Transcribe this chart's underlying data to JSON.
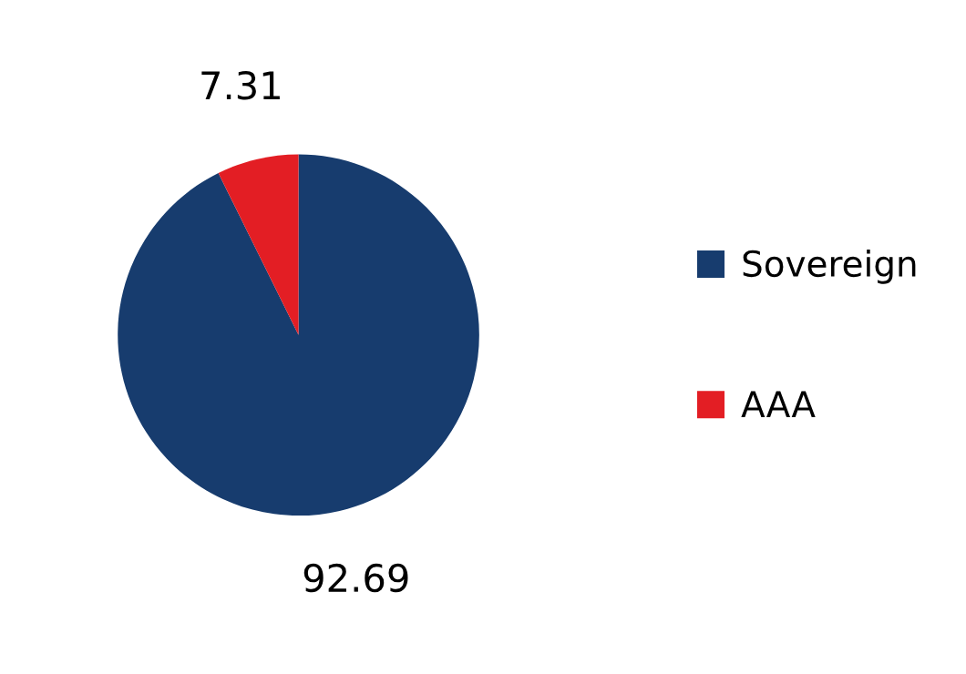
{
  "chart_data": {
    "type": "pie",
    "categories": [
      "Sovereign",
      "AAA"
    ],
    "values": [
      92.69,
      7.31
    ],
    "colors": [
      "#173c6e",
      "#e31e24"
    ],
    "data_labels": true,
    "legend": "right"
  }
}
